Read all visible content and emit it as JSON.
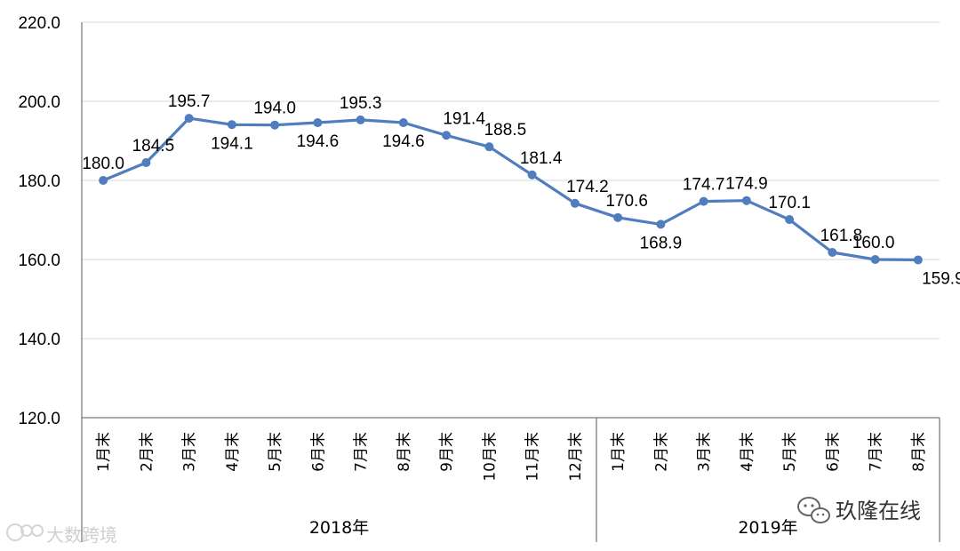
{
  "chart_data": {
    "type": "line",
    "title": "",
    "xlabel": "",
    "ylabel": "",
    "ylim": [
      120,
      220
    ],
    "yticks": [
      "120.0",
      "140.0",
      "160.0",
      "180.0",
      "200.0",
      "220.0"
    ],
    "grid": true,
    "series": [
      {
        "name": "",
        "color": "#4F7DBE",
        "values": [
          180.0,
          184.5,
          195.7,
          194.1,
          194.0,
          194.6,
          195.3,
          194.6,
          191.4,
          188.5,
          181.4,
          174.2,
          170.6,
          168.9,
          174.7,
          174.9,
          170.1,
          161.8,
          160.0,
          159.9
        ],
        "value_labels": [
          "180.0",
          "184.5",
          "195.7",
          "194.1",
          "194.0",
          "194.6",
          "195.3",
          "194.6",
          "191.4",
          "188.5",
          "181.4",
          "174.2",
          "170.6",
          "168.9",
          "174.7",
          "174.9",
          "170.1",
          "161.8",
          "160.0",
          "159.9"
        ]
      }
    ],
    "categories": [
      "1月末",
      "2月末",
      "3月末",
      "4月末",
      "5月末",
      "6月末",
      "7月末",
      "8月末",
      "9月末",
      "10月末",
      "11月末",
      "12月末",
      "1月末",
      "2月末",
      "3月末",
      "4月末",
      "5月末",
      "6月末",
      "7月末",
      "8月末"
    ],
    "groups": [
      {
        "label": "2018年",
        "count": 12
      },
      {
        "label": "2019年",
        "count": 8
      }
    ]
  },
  "watermarks": {
    "left": "大数跨境",
    "right": "玖隆在线"
  },
  "colors": {
    "line": "#4F7DBE",
    "grid": "#D9D9D9",
    "axis": "#595959"
  }
}
